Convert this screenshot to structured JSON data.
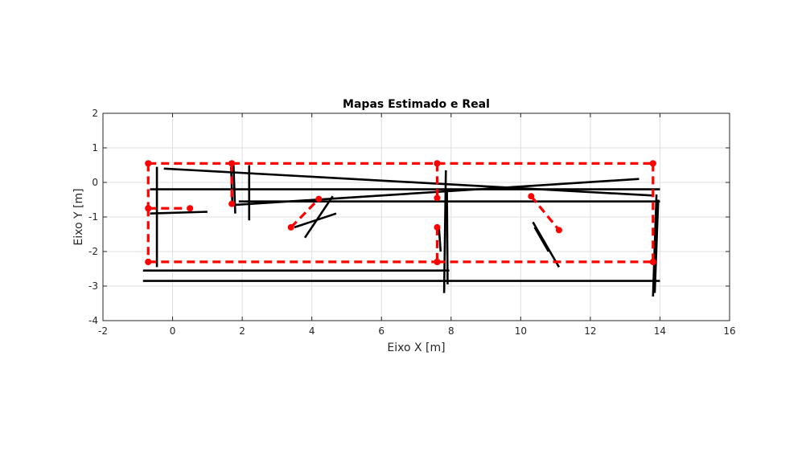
{
  "chart_data": {
    "type": "line",
    "title": "Mapas Estimado e Real",
    "xlabel": "Eixo X [m]",
    "ylabel": "Eixo Y [m]",
    "xlim": [
      -2,
      16
    ],
    "ylim": [
      -4,
      2
    ],
    "xticks": [
      -2,
      0,
      2,
      4,
      6,
      8,
      10,
      12,
      14,
      16
    ],
    "yticks": [
      -4,
      -3,
      -2,
      -1,
      0,
      1,
      2
    ],
    "grid": true,
    "series": [
      {
        "color": "#ff0000",
        "style": "dashed",
        "marker": "circle",
        "segments": [
          [
            [
              -0.7,
              0.55
            ],
            [
              1.7,
              0.55
            ]
          ],
          [
            [
              1.7,
              0.55
            ],
            [
              7.6,
              0.55
            ]
          ],
          [
            [
              7.6,
              0.55
            ],
            [
              13.8,
              0.55
            ]
          ],
          [
            [
              -0.7,
              0.55
            ],
            [
              -0.7,
              -0.75
            ]
          ],
          [
            [
              -0.7,
              -0.75
            ],
            [
              0.5,
              -0.75
            ]
          ],
          [
            [
              -0.7,
              -0.75
            ],
            [
              -0.7,
              -2.3
            ]
          ],
          [
            [
              -0.7,
              -2.3
            ],
            [
              7.6,
              -2.3
            ]
          ],
          [
            [
              7.6,
              -2.3
            ],
            [
              13.8,
              -2.3
            ]
          ],
          [
            [
              13.8,
              0.55
            ],
            [
              13.8,
              -2.3
            ]
          ],
          [
            [
              1.7,
              0.55
            ],
            [
              1.7,
              -0.62
            ]
          ],
          [
            [
              7.6,
              0.55
            ],
            [
              7.6,
              -0.45
            ]
          ],
          [
            [
              7.6,
              -1.3
            ],
            [
              7.6,
              -2.3
            ]
          ],
          [
            [
              3.4,
              -1.3
            ],
            [
              4.2,
              -0.48
            ]
          ],
          [
            [
              10.3,
              -0.4
            ],
            [
              11.1,
              -1.38
            ]
          ]
        ]
      },
      {
        "color": "#000000",
        "style": "solid",
        "marker": "none",
        "segments": [
          [
            [
              -0.65,
              -0.2
            ],
            [
              14.0,
              -0.2
            ]
          ],
          [
            [
              1.9,
              -0.55
            ],
            [
              14.0,
              -0.55
            ]
          ],
          [
            [
              -0.85,
              -2.55
            ],
            [
              7.95,
              -2.55
            ]
          ],
          [
            [
              -0.85,
              -2.85
            ],
            [
              14.0,
              -2.85
            ]
          ],
          [
            [
              -0.25,
              0.4
            ],
            [
              13.8,
              -0.38
            ]
          ],
          [
            [
              1.8,
              -0.65
            ],
            [
              13.4,
              0.1
            ]
          ],
          [
            [
              -0.65,
              -0.9
            ],
            [
              1.0,
              -0.85
            ]
          ],
          [
            [
              -0.45,
              0.45
            ],
            [
              -0.45,
              -2.45
            ]
          ],
          [
            [
              1.75,
              0.5
            ],
            [
              1.8,
              -0.9
            ]
          ],
          [
            [
              1.68,
              0.45
            ],
            [
              1.72,
              -0.7
            ]
          ],
          [
            [
              2.2,
              0.5
            ],
            [
              2.2,
              -1.1
            ]
          ],
          [
            [
              7.85,
              0.35
            ],
            [
              7.8,
              -3.2
            ]
          ],
          [
            [
              7.88,
              -0.2
            ],
            [
              7.9,
              -2.95
            ]
          ],
          [
            [
              7.65,
              -1.3
            ],
            [
              7.7,
              -2.0
            ]
          ],
          [
            [
              13.9,
              -0.35
            ],
            [
              13.8,
              -3.3
            ]
          ],
          [
            [
              13.95,
              -0.5
            ],
            [
              13.85,
              -3.2
            ]
          ],
          [
            [
              3.5,
              -1.3
            ],
            [
              4.7,
              -0.9
            ]
          ],
          [
            [
              3.8,
              -1.6
            ],
            [
              4.6,
              -0.4
            ]
          ],
          [
            [
              10.35,
              -1.15
            ],
            [
              11.1,
              -2.45
            ]
          ],
          [
            [
              10.4,
              -1.3
            ],
            [
              10.8,
              -2.0
            ]
          ]
        ]
      }
    ]
  }
}
